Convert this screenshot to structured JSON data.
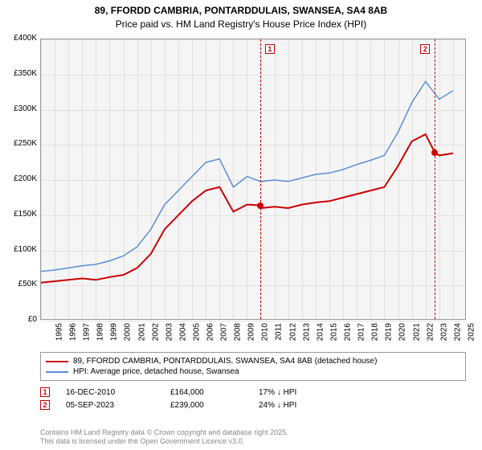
{
  "title_line1": "89, FFORDD CAMBRIA, PONTARDDULAIS, SWANSEA, SA4 8AB",
  "title_line2": "Price paid vs. HM Land Registry's House Price Index (HPI)",
  "chart": {
    "type": "line",
    "background_color": "#f5f5f5",
    "grid_color": "#e0e0e0",
    "border_color": "#999999",
    "ylim": [
      0,
      400000
    ],
    "ytick_step": 50000,
    "yticks": [
      "£0",
      "£50K",
      "£100K",
      "£150K",
      "£200K",
      "£250K",
      "£300K",
      "£350K",
      "£400K"
    ],
    "xlim": [
      1995,
      2026
    ],
    "xticks": [
      1995,
      1996,
      1997,
      1998,
      1999,
      2000,
      2001,
      2002,
      2003,
      2004,
      2005,
      2006,
      2007,
      2008,
      2009,
      2010,
      2011,
      2012,
      2013,
      2014,
      2015,
      2016,
      2017,
      2018,
      2019,
      2020,
      2021,
      2022,
      2023,
      2024,
      2025
    ],
    "series": [
      {
        "name": "price_paid",
        "color": "#cc0000",
        "width": 2,
        "data": [
          [
            1995,
            54000
          ],
          [
            1996,
            56000
          ],
          [
            1997,
            58000
          ],
          [
            1998,
            60000
          ],
          [
            1999,
            58000
          ],
          [
            2000,
            62000
          ],
          [
            2001,
            65000
          ],
          [
            2002,
            75000
          ],
          [
            2003,
            95000
          ],
          [
            2004,
            130000
          ],
          [
            2005,
            150000
          ],
          [
            2006,
            170000
          ],
          [
            2007,
            185000
          ],
          [
            2008,
            190000
          ],
          [
            2009,
            155000
          ],
          [
            2010,
            165000
          ],
          [
            2010.96,
            164000
          ],
          [
            2011,
            160000
          ],
          [
            2012,
            162000
          ],
          [
            2013,
            160000
          ],
          [
            2014,
            165000
          ],
          [
            2015,
            168000
          ],
          [
            2016,
            170000
          ],
          [
            2017,
            175000
          ],
          [
            2018,
            180000
          ],
          [
            2019,
            185000
          ],
          [
            2020,
            190000
          ],
          [
            2021,
            220000
          ],
          [
            2022,
            255000
          ],
          [
            2023,
            265000
          ],
          [
            2023.68,
            239000
          ],
          [
            2024,
            235000
          ],
          [
            2025,
            238000
          ]
        ]
      },
      {
        "name": "hpi",
        "color": "#5b8fd6",
        "width": 1.5,
        "data": [
          [
            1995,
            70000
          ],
          [
            1996,
            72000
          ],
          [
            1997,
            75000
          ],
          [
            1998,
            78000
          ],
          [
            1999,
            80000
          ],
          [
            2000,
            85000
          ],
          [
            2001,
            92000
          ],
          [
            2002,
            105000
          ],
          [
            2003,
            130000
          ],
          [
            2004,
            165000
          ],
          [
            2005,
            185000
          ],
          [
            2006,
            205000
          ],
          [
            2007,
            225000
          ],
          [
            2008,
            230000
          ],
          [
            2009,
            190000
          ],
          [
            2010,
            205000
          ],
          [
            2011,
            198000
          ],
          [
            2012,
            200000
          ],
          [
            2013,
            198000
          ],
          [
            2014,
            203000
          ],
          [
            2015,
            208000
          ],
          [
            2016,
            210000
          ],
          [
            2017,
            215000
          ],
          [
            2018,
            222000
          ],
          [
            2019,
            228000
          ],
          [
            2020,
            235000
          ],
          [
            2021,
            268000
          ],
          [
            2022,
            310000
          ],
          [
            2023,
            340000
          ],
          [
            2024,
            315000
          ],
          [
            2025,
            327000
          ]
        ]
      }
    ],
    "markers": [
      {
        "n": "1",
        "x": 2010.96,
        "y": 164000,
        "color": "#cc0000"
      },
      {
        "n": "2",
        "x": 2023.68,
        "y": 239000,
        "color": "#cc0000"
      }
    ]
  },
  "legend": {
    "series1_label": "89, FFORDD CAMBRIA, PONTARDDULAIS, SWANSEA, SA4 8AB (detached house)",
    "series1_color": "#cc0000",
    "series2_label": "HPI: Average price, detached house, Swansea",
    "series2_color": "#5b8fd6"
  },
  "transactions": [
    {
      "n": "1",
      "date": "16-DEC-2010",
      "price": "£164,000",
      "delta": "17% ↓ HPI",
      "color": "#cc0000"
    },
    {
      "n": "2",
      "date": "05-SEP-2023",
      "price": "£239,000",
      "delta": "24% ↓ HPI",
      "color": "#cc0000"
    }
  ],
  "footer_line1": "Contains HM Land Registry data © Crown copyright and database right 2025.",
  "footer_line2": "This data is licensed under the Open Government Licence v3.0."
}
